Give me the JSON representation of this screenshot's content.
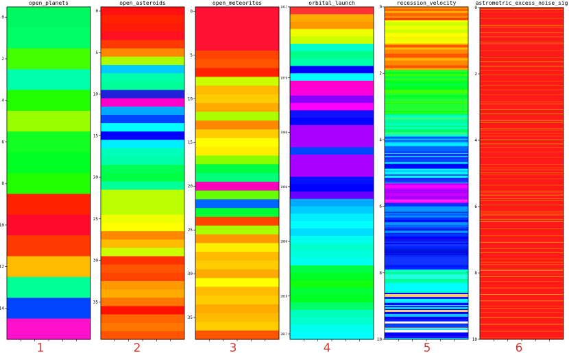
{
  "chart_data": [
    {
      "type": "heatmap",
      "title": "open_planets",
      "panel_label": "1",
      "yticks": [
        "0",
        "2",
        "4",
        "6",
        "8",
        "10",
        "12",
        "14"
      ],
      "ylim": [
        -0.5,
        15.5
      ],
      "colors": [
        "#00f860",
        "#00ff66",
        "#44ff00",
        "#00ffaa",
        "#22ff00",
        "#99ff00",
        "#11ff22",
        "#00ff22",
        "#22ff00",
        "#ff2200",
        "#ff0a2a",
        "#ff3a00",
        "#ffbb00",
        "#00ff99",
        "#0044ff",
        "#ff11cc"
      ]
    },
    {
      "type": "heatmap",
      "title": "open_asteroids",
      "panel_label": "2",
      "yticks": [
        "0",
        "5",
        "10",
        "15",
        "20",
        "25",
        "30",
        "35"
      ],
      "ylim": [
        -0.5,
        39.5
      ],
      "colors": [
        "#ff1111",
        "#ff2200",
        "#ff1a0a",
        "#ff1122",
        "#ff3a00",
        "#ff8800",
        "#aaff00",
        "#00ccff",
        "#00ffaa",
        "#00ff99",
        "#2222dd",
        "#ff00cc",
        "#00aaff",
        "#0044ff",
        "#00ffff",
        "#0000ff",
        "#00eeff",
        "#00ffbb",
        "#00ffaa",
        "#00ff55",
        "#00ff44",
        "#00ff99",
        "#bbff00",
        "#bbff00",
        "#bbff00",
        "#eeff00",
        "#ffff00",
        "#ff8800",
        "#ffbb00",
        "#ccff00",
        "#ff3300",
        "#ff5500",
        "#ff4400",
        "#ff9900",
        "#ffaa00",
        "#ff7700",
        "#ff1100",
        "#ff6600",
        "#ff7700",
        "#ff5500"
      ]
    },
    {
      "type": "heatmap",
      "title": "open_meteorites",
      "panel_label": "3",
      "yticks": [
        "0",
        "5",
        "10",
        "15",
        "20",
        "25",
        "30",
        "35"
      ],
      "ylim": [
        -0.5,
        37.5
      ],
      "colors": [
        "#ff1133",
        "#ff1133",
        "#ff1133",
        "#ff1133",
        "#ff1133",
        "#ff4400",
        "#ff5500",
        "#ff2200",
        "#ccff00",
        "#ffbb00",
        "#ffcc00",
        "#ffaa00",
        "#aaff00",
        "#ff8800",
        "#ffcc00",
        "#ffff00",
        "#ffee00",
        "#88ff00",
        "#00ff44",
        "#00ff77",
        "#ff00bb",
        "#66ff00",
        "#0066ff",
        "#00ff33",
        "#ff4400",
        "#aaff00",
        "#ff9900",
        "#ffee00",
        "#ffbb00",
        "#ffcc00",
        "#ffaa00",
        "#ffff00",
        "#ffbb00",
        "#ffcc00",
        "#ffaa00",
        "#ffbb00",
        "#ffcc00",
        "#ff5500"
      ]
    },
    {
      "type": "heatmap",
      "title": "orbital_launch",
      "panel_label": "4",
      "yticks": [
        "1957",
        "1970",
        "1980",
        "1990",
        "2000",
        "2010",
        "2017"
      ],
      "ylim": [
        1957,
        2018
      ],
      "colors": [
        "#ff3333",
        "#ffaa00",
        "#ff9900",
        "#eeff00",
        "#ccff00",
        "#00ffcc",
        "#00ff88",
        "#00ffaa",
        "#0000ff",
        "#00ffff",
        "#ff00cc",
        "#ff00dd",
        "#8800ff",
        "#ff00ff",
        "#1111ff",
        "#0000ff",
        "#aa00ff",
        "#aa00ff",
        "#aa00ff",
        "#0044ff",
        "#aa00ff",
        "#aa00ff",
        "#aa00ff",
        "#0011ff",
        "#0000ff",
        "#6600ff",
        "#00aaff",
        "#00ccff",
        "#00eeff",
        "#00ffff",
        "#00ddff",
        "#00ffee",
        "#00ffcc",
        "#00ffdd",
        "#00ffee",
        "#00ff44",
        "#00ff22",
        "#11ff11",
        "#00ff33",
        "#00ff22",
        "#00ff66",
        "#00ffbb",
        "#00ffcc",
        "#00ffee",
        "#00ffff"
      ]
    },
    {
      "type": "heatmap",
      "title": "recession_velocity",
      "panel_label": "5",
      "yticks": [
        "0",
        "2",
        "4",
        "6",
        "8",
        "10"
      ],
      "ylim": [
        0,
        10
      ],
      "bands": [
        {
          "to": 0.4,
          "colors": [
            "#ff4400",
            "#ff8800",
            "#ffaa00",
            "#ff6600"
          ]
        },
        {
          "to": 1.1,
          "colors": [
            "#ffff00",
            "#eeff00",
            "#ffee00",
            "#ccff00"
          ]
        },
        {
          "to": 1.9,
          "colors": [
            "#ff8800",
            "#ff5500",
            "#ffaa00",
            "#ff7700",
            "#ffbb00"
          ]
        },
        {
          "to": 3.2,
          "colors": [
            "#11ff11",
            "#00ff44",
            "#44ff00",
            "#00ff22",
            "#22ff33"
          ]
        },
        {
          "to": 3.9,
          "colors": [
            "#00ff99",
            "#00ffcc",
            "#00ff66",
            "#33ff88"
          ]
        },
        {
          "to": 4.4,
          "colors": [
            "#00ccff",
            "#0066ff",
            "#00eeff",
            "#1133ff"
          ]
        },
        {
          "to": 5.3,
          "colors": [
            "#0000ff",
            "#00ffff",
            "#0044ff",
            "#00ccff",
            "#2222ff"
          ]
        },
        {
          "to": 5.9,
          "colors": [
            "#ff00ff",
            "#cc00ff",
            "#ff22ee",
            "#aa00ff"
          ]
        },
        {
          "to": 7.1,
          "colors": [
            "#0000ff",
            "#0066ff",
            "#1111ee",
            "#0033ff",
            "#0099ff"
          ]
        },
        {
          "to": 7.9,
          "colors": [
            "#0000ff",
            "#0022ff",
            "#1133ff",
            "#0011dd"
          ]
        },
        {
          "to": 8.6,
          "colors": [
            "#00ffcc",
            "#00ffff",
            "#00ff99",
            "#22ffdd"
          ]
        },
        {
          "to": 10.0,
          "colors": [
            "#0000ff",
            "#00ccff",
            "#ffffff",
            "#ffcc66",
            "#0044ff",
            "#00ffff",
            "#2211ff"
          ]
        }
      ]
    },
    {
      "type": "heatmap",
      "title": "astrometric_excess_noise_sig",
      "panel_label": "6",
      "yticks": [
        "0",
        "2",
        "4",
        "6",
        "8",
        "10"
      ],
      "ylim": [
        0,
        10
      ],
      "base_color": "#ff1a1a",
      "stripe_colors": [
        "#ffaa00",
        "#ff7700",
        "#ff5500"
      ]
    }
  ]
}
